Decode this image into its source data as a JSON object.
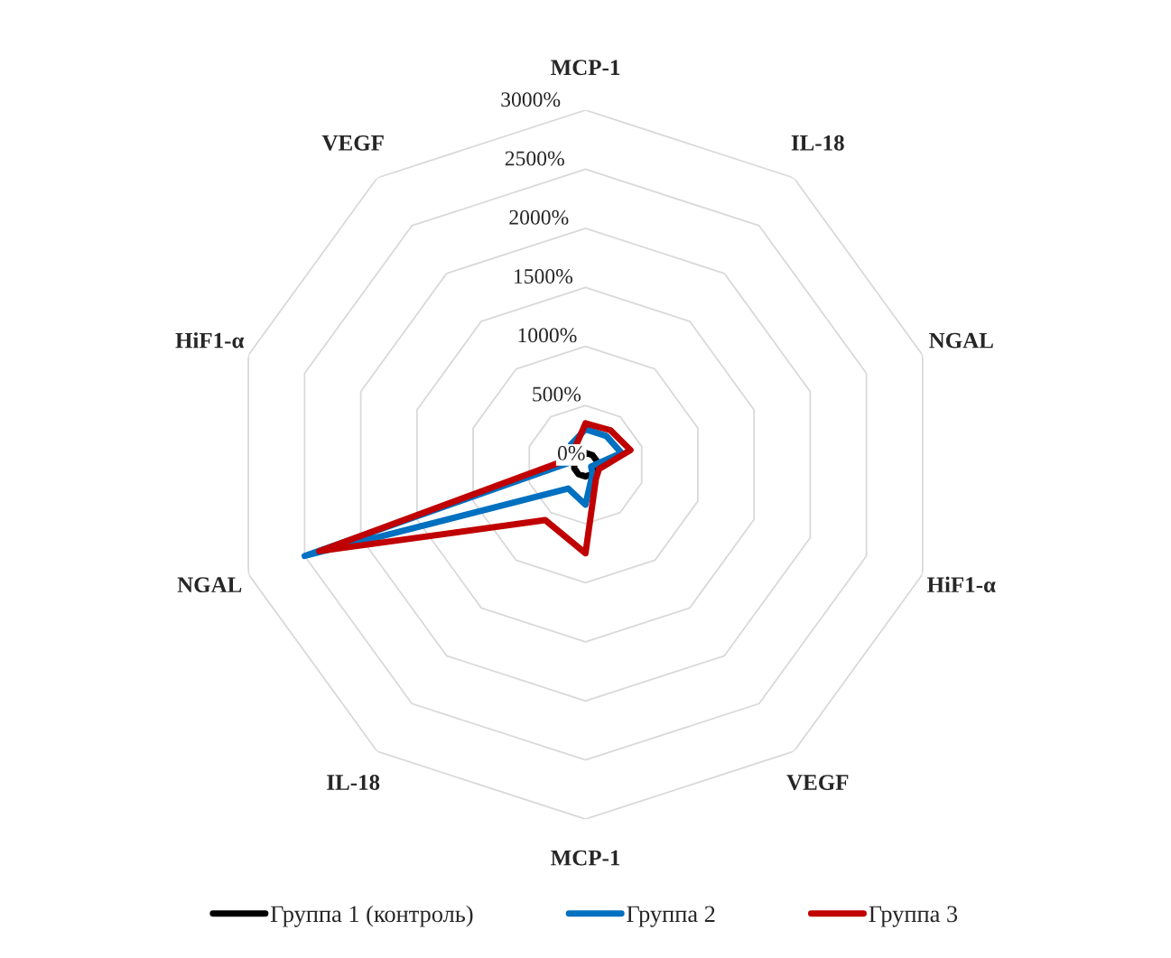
{
  "chart_data": {
    "type": "radar",
    "categories": [
      "MCP-1",
      "IL-18",
      "NGAL",
      "HiF1-α",
      "VEGF",
      "MCP-1",
      "IL-18",
      "NGAL",
      "HiF1-α",
      "VEGF"
    ],
    "series": [
      {
        "name": "Группа 1 (контроль)",
        "color": "#000000",
        "values": [
          100,
          100,
          100,
          100,
          100,
          100,
          100,
          100,
          100,
          100
        ]
      },
      {
        "name": "Группа 2",
        "color": "#0070c0",
        "values": [
          300,
          300,
          320,
          50,
          100,
          340,
          250,
          2500,
          100,
          210
        ]
      },
      {
        "name": "Группа 3",
        "color": "#c00000",
        "values": [
          350,
          360,
          400,
          120,
          150,
          750,
          580,
          2370,
          150,
          160
        ]
      }
    ],
    "ylim": [
      0,
      3000
    ],
    "yticks": [
      {
        "value": 0,
        "label": "0%"
      },
      {
        "value": 500,
        "label": "500%"
      },
      {
        "value": 1000,
        "label": "1000%"
      },
      {
        "value": 1500,
        "label": "1500%"
      },
      {
        "value": 2000,
        "label": "2000%"
      },
      {
        "value": 2500,
        "label": "2500%"
      },
      {
        "value": 3000,
        "label": "3000%"
      }
    ],
    "grid": true,
    "legend": "bottom",
    "marker": "none",
    "line_style": "solid"
  }
}
